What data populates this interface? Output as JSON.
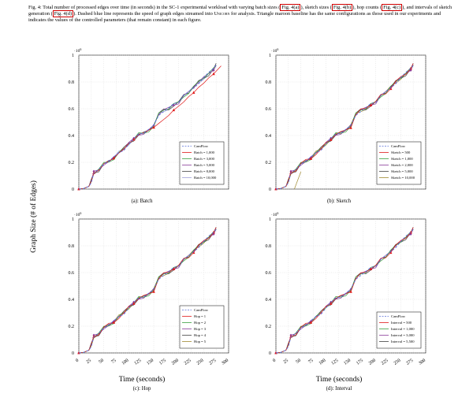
{
  "caption": {
    "prefix": "Fig. 4: Total number of processed edges over time (in seconds) in the SC-1 experimental workload with varying batch sizes (",
    "ref_a": "Fig. 4(a)",
    "mid1": "), sketch sizes (",
    "ref_b": "Fig. 4(b)",
    "mid2": "), hop counts (",
    "ref_c": "Fig. 4(c)",
    "mid3": "), and intervals of sketch generation (",
    "ref_d": "Fig. 4(d)",
    "mid4": "). Dashed blue line represents the speed of graph edges streamed into ",
    "unicorn": "Unicorn",
    "suffix": " for analysis. Triangle maroon baseline has the same configurations as those used in our experiments and indicates the values of the controlled parameters (that remain constant) in each figure."
  },
  "shared": {
    "ylabel": "Graph Size (# of Edges)",
    "xlabel": "Time (seconds)",
    "exponent": "·10",
    "exponent_sup": "6",
    "yticks": [
      "0",
      "0.2",
      "0.4",
      "0.6",
      "0.8",
      "1"
    ],
    "xticks": [
      "0",
      "25",
      "50",
      "75",
      "100",
      "125",
      "150",
      "175",
      "200",
      "225",
      "250",
      "275",
      "300"
    ]
  },
  "chart_data": [
    {
      "type": "line",
      "subcaption": "(a): Batch",
      "ylabel": "Graph Size (# of Edges)",
      "xlabel": "",
      "ylim": [
        0,
        1000000
      ],
      "grid": true,
      "legend_position": "bottom-right",
      "series": [
        {
          "name": "CamFlow",
          "color": "#5a6fd8",
          "marker": "line",
          "dashed": true
        },
        {
          "name": "Batch = 1,000",
          "color": "#e01818",
          "marker": "triangle",
          "dashed": false
        },
        {
          "name": "Batch = 3,000",
          "color": "#3aa040",
          "marker": "line",
          "dashed": false
        },
        {
          "name": "Batch = 5,000",
          "color": "#8a3a9a",
          "marker": "diamond",
          "dashed": false
        },
        {
          "name": "Batch = 8,000",
          "color": "#404040",
          "marker": "line",
          "dashed": false
        },
        {
          "name": "Batch = 10,000",
          "color": "#a0a0d8",
          "marker": "line",
          "dashed": false
        }
      ]
    },
    {
      "type": "line",
      "subcaption": "(b): Sketch",
      "ylabel": "",
      "xlabel": "",
      "ylim": [
        0,
        1000000
      ],
      "grid": true,
      "legend_position": "bottom-right",
      "series": [
        {
          "name": "CamFlow",
          "color": "#5a6fd8",
          "marker": "line",
          "dashed": true
        },
        {
          "name": "Sketch = 500",
          "color": "#e01818",
          "marker": "triangle",
          "dashed": false
        },
        {
          "name": "Sketch = 1,000",
          "color": "#3aa040",
          "marker": "line",
          "dashed": false
        },
        {
          "name": "Sketch = 2,000",
          "color": "#8a3a9a",
          "marker": "diamond",
          "dashed": false
        },
        {
          "name": "Sketch = 5,000",
          "color": "#404040",
          "marker": "line",
          "dashed": false
        },
        {
          "name": "Sketch = 10,000",
          "color": "#a08a30",
          "marker": "line",
          "dashed": false
        }
      ]
    },
    {
      "type": "line",
      "subcaption": "(c): Hop",
      "ylabel": "Graph Size (# of Edges)",
      "xlabel": "Time (seconds)",
      "ylim": [
        0,
        1000000
      ],
      "grid": true,
      "legend_position": "bottom-right",
      "series": [
        {
          "name": "CamFlow",
          "color": "#5a6fd8",
          "marker": "line",
          "dashed": true
        },
        {
          "name": "Hop = 1",
          "color": "#e01818",
          "marker": "triangle",
          "dashed": false
        },
        {
          "name": "Hop = 2",
          "color": "#3aa040",
          "marker": "line",
          "dashed": false
        },
        {
          "name": "Hop = 3",
          "color": "#8a3a9a",
          "marker": "diamond",
          "dashed": false
        },
        {
          "name": "Hop = 4",
          "color": "#404040",
          "marker": "line",
          "dashed": false
        },
        {
          "name": "Hop = 5",
          "color": "#a08a30",
          "marker": "line",
          "dashed": false
        }
      ]
    },
    {
      "type": "line",
      "subcaption": "(d): Interval",
      "ylabel": "",
      "xlabel": "Time (seconds)",
      "ylim": [
        0,
        1000000
      ],
      "grid": true,
      "legend_position": "bottom-right",
      "series": [
        {
          "name": "CamFlow",
          "color": "#5a6fd8",
          "marker": "line",
          "dashed": true
        },
        {
          "name": "Interval = 500",
          "color": "#e01818",
          "marker": "triangle",
          "dashed": false
        },
        {
          "name": "Interval = 1,000",
          "color": "#3aa040",
          "marker": "line",
          "dashed": false
        },
        {
          "name": "Interval = 3,000",
          "color": "#8a3a9a",
          "marker": "diamond",
          "dashed": false
        },
        {
          "name": "Interval = 5,500",
          "color": "#404040",
          "marker": "line",
          "dashed": false
        }
      ]
    }
  ],
  "base_curve": {
    "x": [
      0,
      10,
      20,
      25,
      30,
      40,
      50,
      60,
      70,
      80,
      90,
      100,
      110,
      120,
      130,
      140,
      150,
      160,
      170,
      180,
      190,
      200,
      210,
      220,
      230,
      240,
      250,
      260,
      270,
      275
    ],
    "y": [
      0,
      5000,
      20000,
      60000,
      120000,
      140000,
      190000,
      210000,
      230000,
      270000,
      300000,
      340000,
      370000,
      410000,
      420000,
      440000,
      470000,
      560000,
      590000,
      600000,
      630000,
      650000,
      700000,
      720000,
      760000,
      800000,
      830000,
      860000,
      900000,
      930000
    ]
  },
  "batch_1000_line": {
    "x": [
      0,
      10,
      20,
      25,
      30,
      40,
      50,
      60,
      70,
      80,
      90,
      100,
      110,
      120,
      130,
      140,
      150,
      160,
      170,
      180,
      190,
      200,
      210,
      220,
      230,
      240,
      250,
      260,
      270,
      285
    ],
    "y": [
      0,
      5000,
      20000,
      60000,
      120000,
      140000,
      190000,
      210000,
      230000,
      270000,
      300000,
      340000,
      370000,
      410000,
      420000,
      440000,
      460000,
      490000,
      520000,
      550000,
      590000,
      620000,
      650000,
      690000,
      720000,
      760000,
      790000,
      830000,
      860000,
      920000
    ]
  },
  "sketch_offset_line": {
    "x": [
      37,
      50
    ],
    "y": [
      0,
      130000
    ]
  }
}
